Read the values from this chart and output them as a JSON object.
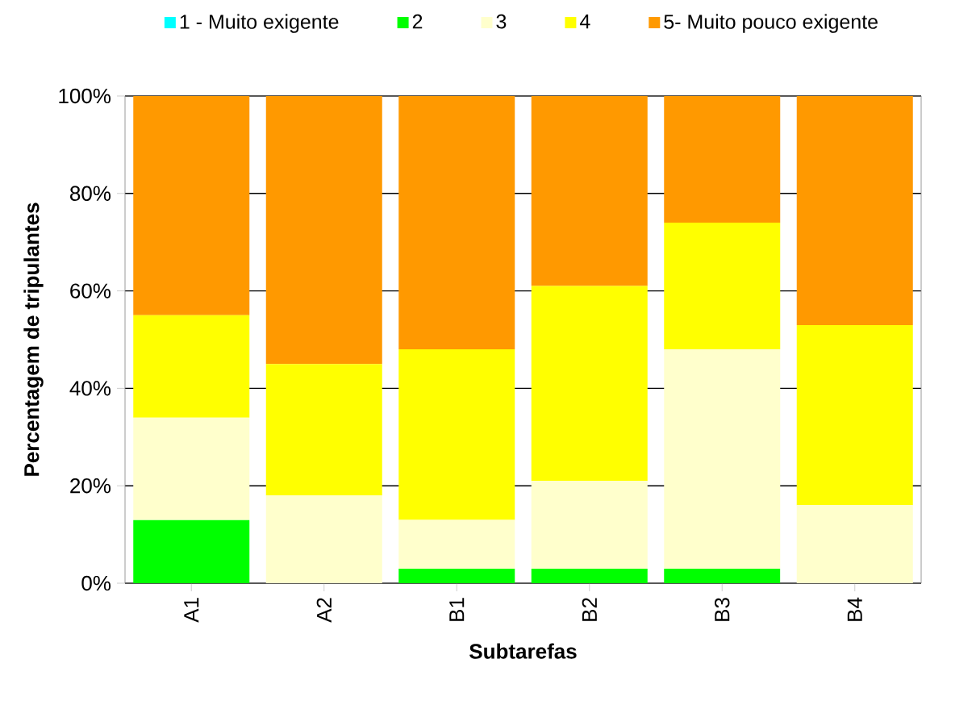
{
  "chart_data": {
    "type": "bar",
    "stacked": true,
    "xlabel": "Subtarefas",
    "ylabel": "Percentagem de tripulantes",
    "categories": [
      "A1",
      "A2",
      "B1",
      "B2",
      "B3",
      "B4"
    ],
    "series": [
      {
        "name": "1 - Muito exigente",
        "color": "#00ffff",
        "values": [
          0,
          0,
          0,
          0,
          0,
          0
        ]
      },
      {
        "name": "2",
        "color": "#00ff00",
        "values": [
          13,
          0,
          3,
          3,
          3,
          0
        ]
      },
      {
        "name": "3",
        "color": "#ffffcc",
        "values": [
          21,
          18,
          10,
          18,
          45,
          16
        ]
      },
      {
        "name": "4",
        "color": "#ffff00",
        "values": [
          21,
          27,
          35,
          40,
          26,
          37
        ]
      },
      {
        "name": "5- Muito pouco exigente",
        "color": "#ff9900",
        "values": [
          45,
          55,
          52,
          39,
          26,
          47
        ]
      }
    ],
    "ylim": [
      0,
      100
    ],
    "yticks": [
      {
        "value": 0,
        "label": "0%"
      },
      {
        "value": 20,
        "label": "20%"
      },
      {
        "value": 40,
        "label": "40%"
      },
      {
        "value": 60,
        "label": "60%"
      },
      {
        "value": 80,
        "label": "80%"
      },
      {
        "value": 100,
        "label": "100%"
      }
    ],
    "grid": "y",
    "legend": "top"
  }
}
